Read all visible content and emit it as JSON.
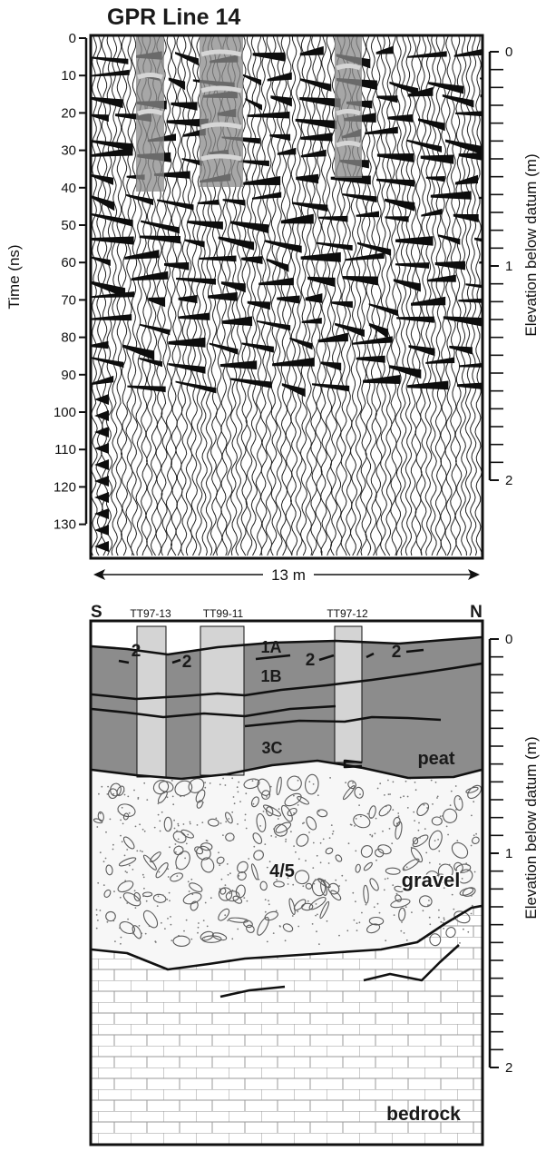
{
  "title": "GPR Line 14",
  "gpr": {
    "y_label": "Time (ns)",
    "right_label": "Elevation below datum (m)",
    "time_ticks": [
      "0",
      "10",
      "20",
      "30",
      "40",
      "50",
      "60",
      "70",
      "80",
      "90",
      "100",
      "110",
      "120",
      "130"
    ],
    "elev_ticks": [
      "0",
      "1",
      "2"
    ],
    "width_label": "13 m"
  },
  "section": {
    "south_label": "S",
    "north_label": "N",
    "right_label": "Elevation below datum (m)",
    "elev_ticks": [
      "0",
      "1",
      "2"
    ],
    "cores": [
      "TT97-13",
      "TT99-11",
      "TT97-12"
    ],
    "units": {
      "u2": "2",
      "u1a": "1A",
      "u1b": "1B",
      "u3c": "3C",
      "u45": "4/5",
      "peat": "peat",
      "gravel": "gravel",
      "bedrock": "bedrock"
    }
  },
  "colors": {
    "peat_fill": "#8c8c8c",
    "core_fill": "#d4d4d4",
    "gpr_core_overlay": "#8a8a8a",
    "frame": "#111111"
  }
}
